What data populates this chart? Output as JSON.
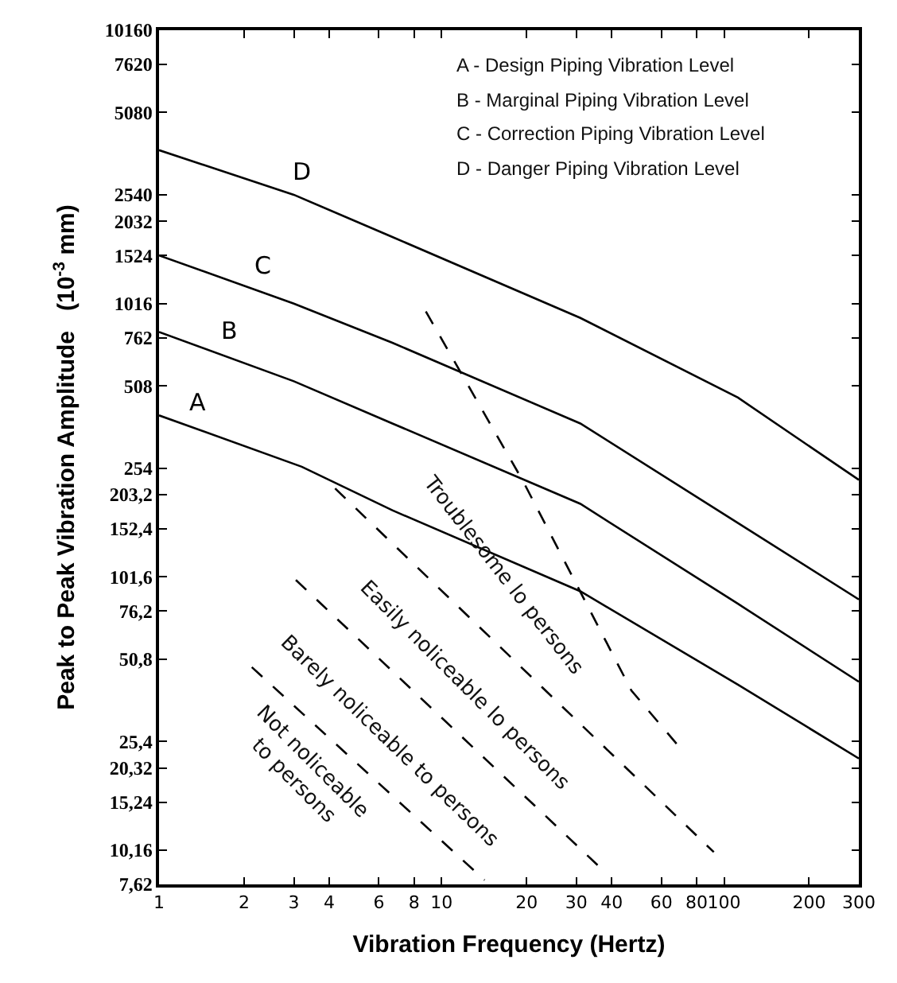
{
  "chart_data": {
    "type": "line",
    "xlabel": "Vibration Frequency (Hertz)",
    "ylabel": "Peak to Peak Vibration Amplitude   (10$^{-3}$ mm)",
    "log": "xy",
    "grid": false,
    "legend": false,
    "marker": "none",
    "xlim": [
      1,
      300
    ],
    "xticks": [
      1,
      2,
      3,
      4,
      6,
      8,
      10,
      20,
      30,
      40,
      60,
      80,
      100,
      200,
      300
    ],
    "ylim": [
      7.62,
      10160
    ],
    "yticks": [
      {
        "value": 7.62,
        "label": "7,62"
      },
      {
        "value": 10.16,
        "label": "10,16"
      },
      {
        "value": 15.24,
        "label": "15,24"
      },
      {
        "value": 20.32,
        "label": "20,32"
      },
      {
        "value": 25.4,
        "label": "25,4"
      },
      {
        "value": 50.8,
        "label": "50,8"
      },
      {
        "value": 76.2,
        "label": "76,2"
      },
      {
        "value": 101.6,
        "label": "101,6"
      },
      {
        "value": 152.4,
        "label": "152,4"
      },
      {
        "value": 203.2,
        "label": "203,2"
      },
      254,
      508,
      762,
      1016,
      1524,
      2032,
      2540,
      5080,
      7620,
      10160
    ],
    "series": [
      {
        "name": "D",
        "color": "#000000",
        "line_style": "solid",
        "x": [
          1,
          3,
          6.7,
          31,
          112,
          300
        ],
        "values": [
          3700,
          2540,
          1780,
          900,
          460,
          230
        ]
      },
      {
        "name": "C",
        "color": "#000000",
        "line_style": "solid",
        "x": [
          1,
          3,
          6.7,
          31,
          112,
          300
        ],
        "values": [
          1524,
          1016,
          730,
          370,
          160,
          84
        ]
      },
      {
        "name": "B",
        "color": "#000000",
        "line_style": "solid",
        "x": [
          1,
          3,
          6.7,
          31,
          112,
          300
        ],
        "values": [
          800,
          528,
          370,
          188,
          81,
          42
        ]
      },
      {
        "name": "A",
        "color": "#000000",
        "line_style": "solid",
        "x": [
          1,
          3.2,
          6.7,
          31,
          112,
          300
        ],
        "values": [
          396,
          257,
          178,
          90,
          41,
          22
        ]
      },
      {
        "color": "#000000",
        "line_style": "dashed",
        "x": [
          8.8,
          19.5,
          47,
          70
        ],
        "values": [
          950,
          226,
          39,
          24
        ]
      },
      {
        "color": "#000000",
        "line_style": "dashed",
        "x": [
          4.2,
          92
        ],
        "values": [
          214,
          10
        ]
      },
      {
        "color": "#000000",
        "line_style": "dashed",
        "x": [
          3.05,
          38.6
        ],
        "values": [
          99,
          8.3
        ]
      },
      {
        "color": "#000000",
        "line_style": "dashed",
        "x": [
          2.13,
          14.2
        ],
        "values": [
          47.5,
          7.9
        ]
      }
    ],
    "annotations": [
      "A - Design Piping Vibration Level",
      "B - Marginal Piping Vibration Level",
      "C - Correction Piping Vibration Level",
      "D - Danger Piping Vibration Level",
      "Troublesome lo persons",
      "Easily noliceable lo persons",
      "Barely noliceable to persons",
      "Not noliceable\nto persons"
    ]
  }
}
